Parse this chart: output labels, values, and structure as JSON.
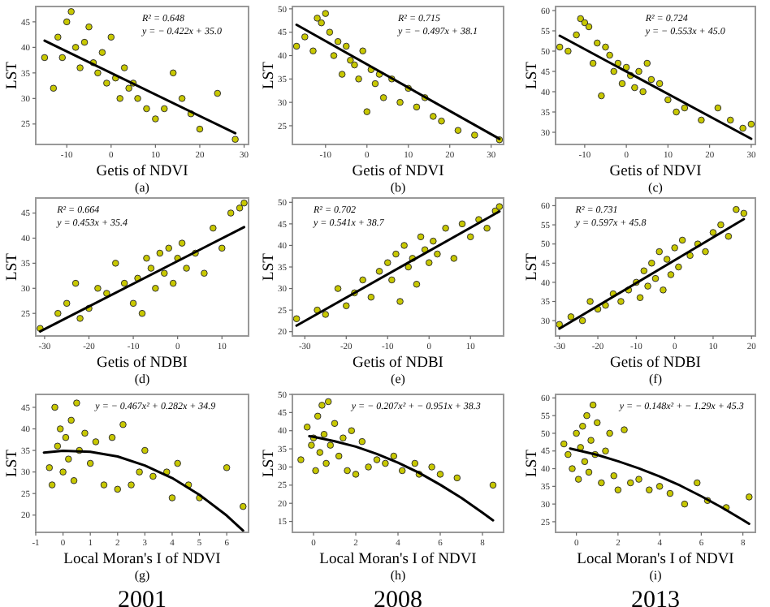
{
  "chart_data": [
    {
      "type": "scatter",
      "xlabel": "Getis of NDVI",
      "ylabel": "LST",
      "xlim": [
        -17,
        31
      ],
      "xticks": [
        -10,
        0,
        10,
        20,
        30
      ],
      "ylim": [
        21,
        48
      ],
      "yticks": [
        25,
        30,
        35,
        40,
        45
      ],
      "annotations": [
        "R² = 0.648",
        "y = − 0.422x + 35.0",
        "(a)"
      ],
      "series": [
        {
          "marker": "circle",
          "color": "#c8c800",
          "x": [
            -15,
            -13,
            -12,
            -11,
            -10,
            -9,
            -8,
            -7,
            -6,
            -5,
            -4,
            -3,
            -2,
            -1,
            0,
            1,
            2,
            3,
            4,
            5,
            6,
            8,
            10,
            12,
            14,
            16,
            18,
            20,
            24,
            28
          ],
          "values": [
            38,
            32,
            42,
            38,
            45,
            47,
            40,
            36,
            41,
            44,
            37,
            35,
            39,
            33,
            42,
            34,
            30,
            36,
            32,
            33,
            30,
            28,
            26,
            28,
            35,
            30,
            27,
            24,
            31,
            22
          ]
        },
        {
          "type": "line",
          "color": "#000000",
          "x": [
            -15,
            28
          ],
          "values": [
            41.3,
            23.2
          ]
        }
      ]
    },
    {
      "type": "scatter",
      "xlabel": "Getis of NDVI",
      "ylabel": "LST",
      "xlim": [
        -18,
        33
      ],
      "xticks": [
        -10,
        0,
        10,
        20,
        30
      ],
      "ylim": [
        21,
        50.5
      ],
      "yticks": [
        25,
        30,
        35,
        40,
        45,
        50
      ],
      "annotations": [
        "R² = 0.715",
        "y = − 0.497x + 38.1",
        "(b)"
      ],
      "series": [
        {
          "marker": "circle",
          "color": "#c8c800",
          "x": [
            -17,
            -15,
            -13,
            -12,
            -11,
            -10,
            -9,
            -8,
            -7,
            -6,
            -5,
            -4,
            -3,
            -2,
            -1,
            0,
            1,
            2,
            3,
            4,
            6,
            8,
            10,
            12,
            14,
            16,
            18,
            22,
            26,
            32
          ],
          "values": [
            42,
            44,
            41,
            48,
            47,
            49,
            45,
            40,
            43,
            36,
            42,
            39,
            38,
            35,
            41,
            28,
            37,
            34,
            36,
            31,
            35,
            30,
            33,
            29,
            31,
            27,
            26,
            24,
            23,
            22
          ]
        },
        {
          "type": "line",
          "color": "#000000",
          "x": [
            -17,
            32
          ],
          "values": [
            46.6,
            22.2
          ]
        }
      ]
    },
    {
      "type": "scatter",
      "xlabel": "Getis of NDVI",
      "ylabel": "LST",
      "xlim": [
        -17,
        31
      ],
      "xticks": [
        -10,
        0,
        10,
        20,
        30
      ],
      "ylim": [
        27,
        61
      ],
      "yticks": [
        30,
        35,
        40,
        45,
        50,
        55,
        60
      ],
      "annotations": [
        "R² = 0.724",
        "y = − 0.553x + 45.0",
        "(c)"
      ],
      "series": [
        {
          "marker": "circle",
          "color": "#c8c800",
          "x": [
            -16,
            -14,
            -12,
            -11,
            -10,
            -9,
            -8,
            -7,
            -6,
            -5,
            -4,
            -3,
            -2,
            -1,
            0,
            1,
            2,
            3,
            4,
            5,
            6,
            8,
            10,
            12,
            14,
            18,
            22,
            25,
            28,
            30
          ],
          "values": [
            51,
            50,
            54,
            58,
            57,
            56,
            47,
            52,
            39,
            51,
            49,
            45,
            47,
            42,
            46,
            44,
            41,
            45,
            40,
            47,
            43,
            42,
            38,
            35,
            36,
            33,
            36,
            33,
            31,
            32
          ]
        },
        {
          "type": "line",
          "color": "#000000",
          "x": [
            -16,
            30
          ],
          "values": [
            53.8,
            28.4
          ]
        }
      ]
    },
    {
      "type": "scatter",
      "xlabel": "Getis of NDBI",
      "ylabel": "LST",
      "xlim": [
        -32,
        16
      ],
      "xticks": [
        -30,
        -20,
        -10,
        0,
        10
      ],
      "ylim": [
        20.5,
        48
      ],
      "yticks": [
        25,
        30,
        35,
        40,
        45
      ],
      "annotations": [
        "R² = 0.664",
        "y = 0.453x + 35.4",
        "(d)"
      ],
      "series": [
        {
          "marker": "circle",
          "color": "#c8c800",
          "x": [
            -31,
            -27,
            -25,
            -23,
            -22,
            -20,
            -18,
            -16,
            -14,
            -12,
            -10,
            -9,
            -8,
            -7,
            -6,
            -5,
            -4,
            -3,
            -2,
            -1,
            0,
            1,
            2,
            4,
            6,
            8,
            10,
            12,
            14,
            15
          ],
          "values": [
            22,
            25,
            27,
            31,
            24,
            26,
            30,
            29,
            35,
            31,
            27,
            32,
            25,
            36,
            34,
            30,
            37,
            33,
            38,
            31,
            36,
            39,
            34,
            37,
            33,
            42,
            38,
            45,
            46,
            47
          ]
        },
        {
          "type": "line",
          "color": "#000000",
          "x": [
            -31,
            15
          ],
          "values": [
            21.4,
            42.2
          ]
        }
      ]
    },
    {
      "type": "scatter",
      "xlabel": "Getis of NDBI",
      "ylabel": "LST",
      "xlim": [
        -33,
        18
      ],
      "xticks": [
        -30,
        -20,
        -10,
        0,
        10
      ],
      "ylim": [
        19,
        51
      ],
      "yticks": [
        20,
        25,
        30,
        35,
        40,
        45,
        50
      ],
      "annotations": [
        "R² = 0.702",
        "y = 0.541x + 38.7",
        "(e)"
      ],
      "series": [
        {
          "marker": "circle",
          "color": "#c8c800",
          "x": [
            -32,
            -27,
            -25,
            -22,
            -20,
            -18,
            -16,
            -14,
            -12,
            -10,
            -9,
            -8,
            -7,
            -6,
            -5,
            -4,
            -3,
            -2,
            -1,
            0,
            1,
            2,
            4,
            6,
            8,
            10,
            12,
            14,
            16,
            17
          ],
          "values": [
            23,
            25,
            24,
            30,
            26,
            29,
            32,
            28,
            34,
            36,
            32,
            38,
            27,
            40,
            35,
            37,
            31,
            42,
            39,
            36,
            41,
            38,
            44,
            37,
            45,
            42,
            46,
            44,
            48,
            49
          ]
        },
        {
          "type": "line",
          "color": "#000000",
          "x": [
            -32,
            17
          ],
          "values": [
            21.4,
            47.9
          ]
        }
      ]
    },
    {
      "type": "scatter",
      "xlabel": "Getis of NDBI",
      "ylabel": "LST",
      "xlim": [
        -31,
        21
      ],
      "xticks": [
        -30,
        -20,
        -10,
        0,
        10,
        20
      ],
      "ylim": [
        26,
        62
      ],
      "yticks": [
        30,
        35,
        40,
        45,
        50,
        55,
        60
      ],
      "annotations": [
        "R² = 0.731",
        "y = 0.597x + 45.8",
        "(f)"
      ],
      "series": [
        {
          "marker": "circle",
          "color": "#c8c800",
          "x": [
            -30,
            -27,
            -24,
            -22,
            -20,
            -18,
            -16,
            -14,
            -12,
            -10,
            -9,
            -8,
            -7,
            -6,
            -5,
            -4,
            -3,
            -2,
            -1,
            0,
            1,
            2,
            4,
            6,
            8,
            10,
            12,
            14,
            16,
            18
          ],
          "values": [
            29,
            31,
            30,
            35,
            33,
            34,
            37,
            35,
            38,
            40,
            36,
            43,
            39,
            45,
            41,
            48,
            38,
            46,
            42,
            49,
            44,
            51,
            47,
            50,
            48,
            53,
            55,
            52,
            59,
            58
          ]
        },
        {
          "type": "line",
          "color": "#000000",
          "x": [
            -30,
            18
          ],
          "values": [
            27.9,
            56.5
          ]
        }
      ]
    },
    {
      "type": "scatter",
      "xlabel": "Local Moran's I of NDVI",
      "ylabel": "LST",
      "xlim": [
        -1,
        6.8
      ],
      "xticks": [
        -1,
        0,
        1,
        2,
        3,
        4,
        5,
        6
      ],
      "ylim": [
        16,
        48
      ],
      "yticks": [
        20,
        25,
        30,
        35,
        40,
        45
      ],
      "annotations": [
        "y = − 0.467x² + 0.282x + 34.9",
        "(g)",
        "2001"
      ],
      "series": [
        {
          "marker": "circle",
          "color": "#c8c800",
          "x": [
            -0.5,
            -0.4,
            -0.3,
            -0.2,
            -0.1,
            0,
            0.1,
            0.2,
            0.3,
            0.4,
            0.5,
            0.6,
            0.8,
            1.0,
            1.2,
            1.5,
            1.8,
            2.0,
            2.2,
            2.5,
            2.8,
            3.0,
            3.3,
            3.8,
            4.0,
            4.2,
            4.6,
            5.0,
            6.0,
            6.6
          ],
          "values": [
            31,
            27,
            45,
            36,
            40,
            30,
            38,
            33,
            42,
            28,
            46,
            35,
            39,
            32,
            37,
            27,
            38,
            26,
            41,
            27,
            30,
            35,
            29,
            30,
            24,
            32,
            27,
            24,
            31,
            22
          ]
        },
        {
          "type": "line",
          "color": "#000000",
          "x": [
            -0.7,
            0,
            1,
            2,
            3,
            4,
            5,
            6,
            6.6
          ],
          "values": [
            34.5,
            34.9,
            34.7,
            33.6,
            31.5,
            28.6,
            24.7,
            19.9,
            16.4
          ]
        }
      ]
    },
    {
      "type": "scatter",
      "xlabel": "Local Moran's I of NDVI",
      "ylabel": "LST",
      "xlim": [
        -1,
        9
      ],
      "xticks": [
        0,
        2,
        4,
        6,
        8
      ],
      "ylim": [
        12,
        50
      ],
      "yticks": [
        15,
        20,
        25,
        30,
        35,
        40,
        45,
        50
      ],
      "annotations": [
        "y = − 0.207x² + − 0.951x + 38.3",
        "(h)",
        "2008"
      ],
      "series": [
        {
          "marker": "circle",
          "color": "#c8c800",
          "x": [
            -0.6,
            -0.3,
            -0.1,
            0,
            0.1,
            0.2,
            0.3,
            0.4,
            0.5,
            0.6,
            0.7,
            0.8,
            1.0,
            1.2,
            1.4,
            1.6,
            1.8,
            2.0,
            2.3,
            2.6,
            3.0,
            3.4,
            3.8,
            4.2,
            4.8,
            5.0,
            5.6,
            6.0,
            6.8,
            8.5
          ],
          "values": [
            32,
            41,
            36,
            38,
            29,
            44,
            34,
            47,
            39,
            31,
            48,
            36,
            42,
            33,
            38,
            29,
            40,
            28,
            37,
            30,
            32,
            31,
            33,
            29,
            31,
            28,
            30,
            28,
            27,
            25
          ]
        },
        {
          "type": "line",
          "color": "#000000",
          "x": [
            -0.2,
            0,
            1,
            2,
            3,
            4,
            5,
            6,
            7,
            8,
            8.5
          ],
          "values": [
            38.5,
            38.3,
            37.1,
            35.6,
            33.6,
            31.2,
            28.4,
            25.1,
            21.5,
            17.4,
            15.3
          ]
        }
      ]
    },
    {
      "type": "scatter",
      "xlabel": "Local Moran's I of NDVI",
      "ylabel": "LST",
      "xlim": [
        -1,
        8.6
      ],
      "xticks": [
        0,
        2,
        4,
        6,
        8
      ],
      "ylim": [
        22,
        61
      ],
      "yticks": [
        25,
        30,
        35,
        40,
        45,
        50,
        55,
        60
      ],
      "annotations": [
        "y = − 0.148x² + − 1.29x + 45.3",
        "(i)",
        "2013"
      ],
      "series": [
        {
          "marker": "circle",
          "color": "#c8c800",
          "x": [
            -0.6,
            -0.4,
            -0.2,
            0,
            0.1,
            0.2,
            0.3,
            0.4,
            0.5,
            0.6,
            0.7,
            0.8,
            0.9,
            1.0,
            1.2,
            1.4,
            1.6,
            1.8,
            2.0,
            2.3,
            2.6,
            3.0,
            3.5,
            4.0,
            4.5,
            5.2,
            5.8,
            6.3,
            7.2,
            8.3
          ],
          "values": [
            47,
            44,
            40,
            50,
            37,
            46,
            52,
            42,
            55,
            39,
            48,
            58,
            44,
            53,
            36,
            45,
            50,
            38,
            34,
            51,
            36,
            37,
            34,
            35,
            33,
            30,
            36,
            31,
            29,
            32
          ]
        },
        {
          "type": "line",
          "color": "#000000",
          "x": [
            -0.3,
            0,
            1,
            2,
            3,
            4,
            5,
            6,
            7,
            8,
            8.3
          ],
          "values": [
            45.7,
            45.3,
            43.9,
            42.1,
            40.1,
            37.8,
            35.2,
            32.2,
            29.0,
            25.5,
            24.4
          ]
        }
      ]
    }
  ]
}
